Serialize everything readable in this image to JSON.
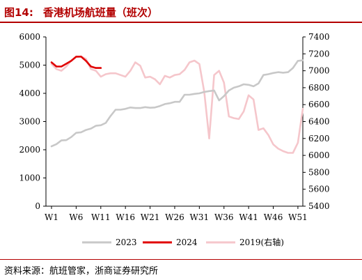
{
  "header": {
    "figure_label": "图14:",
    "figure_title": "香港机场航班量（班次）"
  },
  "footer": {
    "source": "资料来源：航班管家，浙商证券研究所"
  },
  "colors": {
    "accent": "#b30000",
    "s2023": "#c8c8c8",
    "s2024": "#e00000",
    "s2019": "#f5c6cb"
  },
  "chart_data": {
    "type": "line",
    "x_ticks": [
      "W1",
      "W6",
      "W11",
      "W16",
      "W21",
      "W26",
      "W31",
      "W36",
      "W41",
      "W46",
      "W51"
    ],
    "x_tick_weeks": [
      1,
      6,
      11,
      16,
      21,
      26,
      31,
      36,
      41,
      46,
      51
    ],
    "x_range": [
      1,
      52
    ],
    "y_left": {
      "range": [
        0,
        6000
      ],
      "ticks": [
        0,
        1000,
        2000,
        3000,
        4000,
        5000,
        6000
      ]
    },
    "y_right": {
      "range": [
        5400,
        7400
      ],
      "ticks": [
        5400,
        5600,
        5800,
        6000,
        6200,
        6400,
        6600,
        6800,
        7000,
        7200,
        7400
      ]
    },
    "grid": false,
    "legend_position": "bottom",
    "series": [
      {
        "name": "2023",
        "axis": "left",
        "points": [
          [
            1,
            2120
          ],
          [
            2,
            2200
          ],
          [
            3,
            2330
          ],
          [
            4,
            2340
          ],
          [
            5,
            2450
          ],
          [
            6,
            2600
          ],
          [
            7,
            2620
          ],
          [
            8,
            2700
          ],
          [
            9,
            2750
          ],
          [
            10,
            2850
          ],
          [
            11,
            2870
          ],
          [
            12,
            2950
          ],
          [
            13,
            3200
          ],
          [
            14,
            3420
          ],
          [
            15,
            3420
          ],
          [
            16,
            3450
          ],
          [
            17,
            3500
          ],
          [
            18,
            3480
          ],
          [
            19,
            3480
          ],
          [
            20,
            3510
          ],
          [
            21,
            3490
          ],
          [
            22,
            3500
          ],
          [
            23,
            3550
          ],
          [
            24,
            3620
          ],
          [
            25,
            3650
          ],
          [
            26,
            3700
          ],
          [
            27,
            3700
          ],
          [
            28,
            3950
          ],
          [
            29,
            3950
          ],
          [
            30,
            3980
          ],
          [
            31,
            4000
          ],
          [
            32,
            4050
          ],
          [
            33,
            4080
          ],
          [
            34,
            4100
          ],
          [
            35,
            3750
          ],
          [
            36,
            3900
          ],
          [
            37,
            4100
          ],
          [
            38,
            4200
          ],
          [
            39,
            4250
          ],
          [
            40,
            4320
          ],
          [
            41,
            4300
          ],
          [
            42,
            4250
          ],
          [
            43,
            4350
          ],
          [
            44,
            4650
          ],
          [
            45,
            4680
          ],
          [
            46,
            4720
          ],
          [
            47,
            4750
          ],
          [
            48,
            4730
          ],
          [
            49,
            4750
          ],
          [
            50,
            4900
          ],
          [
            51,
            5150
          ],
          [
            52,
            5170
          ]
        ]
      },
      {
        "name": "2024",
        "axis": "left",
        "points": [
          [
            1,
            5100
          ],
          [
            2,
            4950
          ],
          [
            3,
            4950
          ],
          [
            4,
            5050
          ],
          [
            5,
            5150
          ],
          [
            6,
            5300
          ],
          [
            7,
            5300
          ],
          [
            8,
            5150
          ],
          [
            9,
            4950
          ],
          [
            10,
            4900
          ],
          [
            11,
            4900
          ]
        ]
      },
      {
        "name": "2019(右轴)",
        "axis": "right",
        "points": [
          [
            1,
            7080
          ],
          [
            2,
            7020
          ],
          [
            3,
            7000
          ],
          [
            4,
            7050
          ],
          [
            5,
            7120
          ],
          [
            6,
            7160
          ],
          [
            7,
            7170
          ],
          [
            8,
            7140
          ],
          [
            9,
            7020
          ],
          [
            10,
            7000
          ],
          [
            11,
            6930
          ],
          [
            12,
            6960
          ],
          [
            13,
            6970
          ],
          [
            14,
            6970
          ],
          [
            15,
            6950
          ],
          [
            16,
            6930
          ],
          [
            17,
            7000
          ],
          [
            18,
            7100
          ],
          [
            19,
            7060
          ],
          [
            20,
            6920
          ],
          [
            21,
            6930
          ],
          [
            22,
            6900
          ],
          [
            23,
            6840
          ],
          [
            24,
            6940
          ],
          [
            25,
            6920
          ],
          [
            26,
            6950
          ],
          [
            27,
            6960
          ],
          [
            28,
            7010
          ],
          [
            29,
            7100
          ],
          [
            30,
            7120
          ],
          [
            31,
            7080
          ],
          [
            32,
            6750
          ],
          [
            33,
            6200
          ],
          [
            34,
            6950
          ],
          [
            35,
            7000
          ],
          [
            36,
            6860
          ],
          [
            37,
            6460
          ],
          [
            38,
            6440
          ],
          [
            39,
            6430
          ],
          [
            40,
            6520
          ],
          [
            41,
            6710
          ],
          [
            42,
            6660
          ],
          [
            43,
            6300
          ],
          [
            44,
            6320
          ],
          [
            45,
            6240
          ],
          [
            46,
            6130
          ],
          [
            47,
            6080
          ],
          [
            48,
            6050
          ],
          [
            49,
            6030
          ],
          [
            50,
            6030
          ],
          [
            51,
            6150
          ],
          [
            52,
            6550
          ]
        ]
      }
    ]
  }
}
